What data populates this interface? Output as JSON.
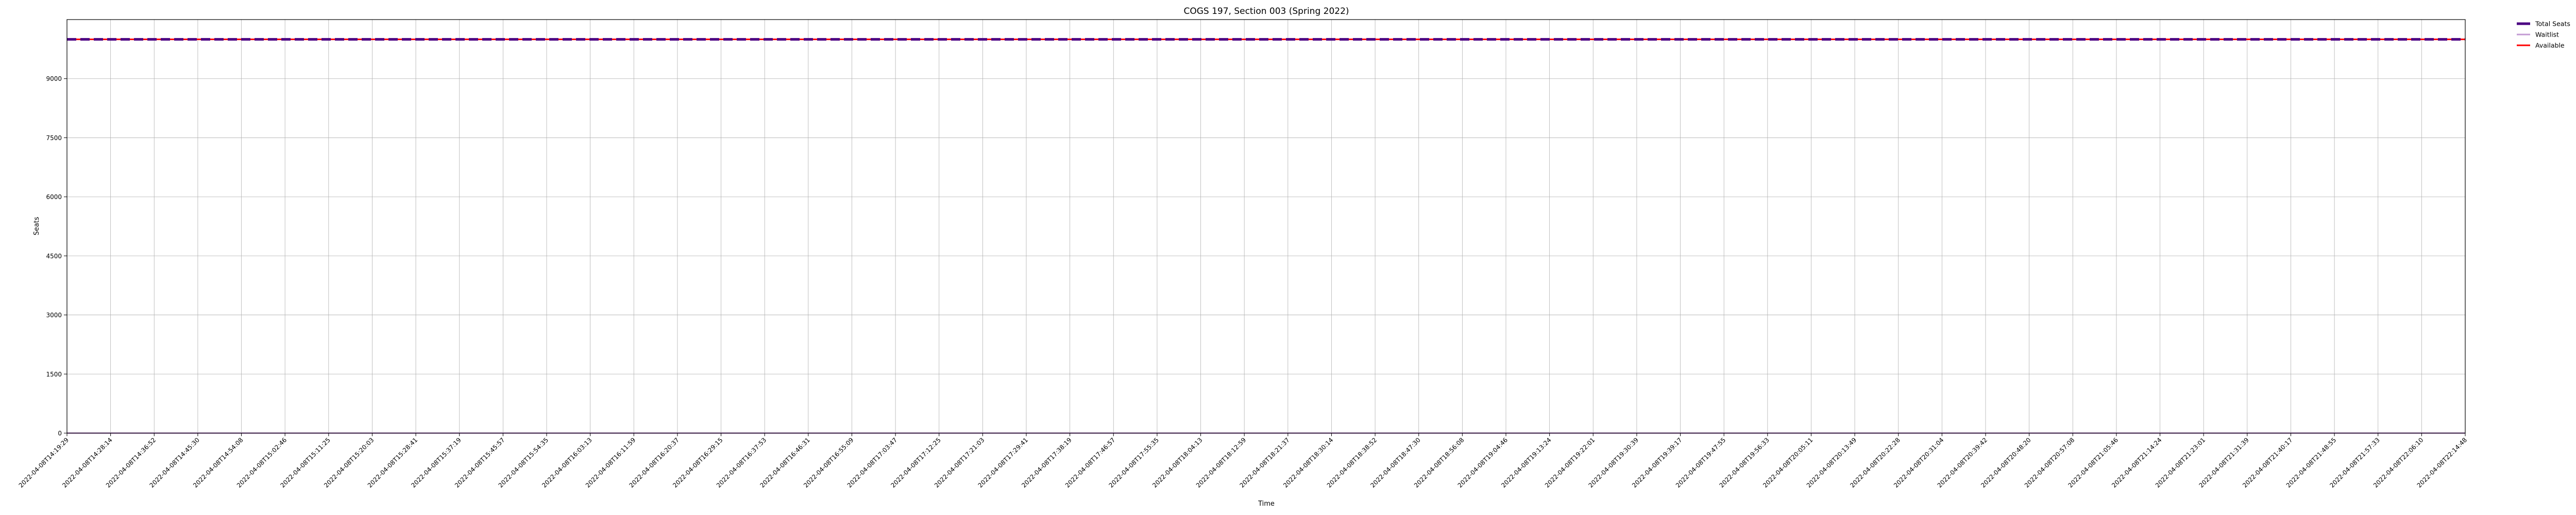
{
  "chart_data": {
    "type": "line",
    "title": "COGS 197, Section 003 (Spring 2022)",
    "xlabel": "Time",
    "ylabel": "Seats",
    "ylim": [
      0,
      10500
    ],
    "yticks": [
      0,
      1500,
      3000,
      4500,
      6000,
      7500,
      9000
    ],
    "grid": true,
    "legend_position": "outside top-right",
    "x": [
      "2022-04-08T14:19:29",
      "2022-04-08T14:28:14",
      "2022-04-08T14:36:52",
      "2022-04-08T14:45:30",
      "2022-04-08T14:54:08",
      "2022-04-08T15:02:46",
      "2022-04-08T15:11:25",
      "2022-04-08T15:20:03",
      "2022-04-08T15:28:41",
      "2022-04-08T15:37:19",
      "2022-04-08T15:45:57",
      "2022-04-08T15:54:35",
      "2022-04-08T16:03:13",
      "2022-04-08T16:11:59",
      "2022-04-08T16:20:37",
      "2022-04-08T16:29:15",
      "2022-04-08T16:37:53",
      "2022-04-08T16:46:31",
      "2022-04-08T16:55:09",
      "2022-04-08T17:03:47",
      "2022-04-08T17:12:25",
      "2022-04-08T17:21:03",
      "2022-04-08T17:29:41",
      "2022-04-08T17:38:19",
      "2022-04-08T17:46:57",
      "2022-04-08T17:55:35",
      "2022-04-08T18:04:13",
      "2022-04-08T18:12:59",
      "2022-04-08T18:21:37",
      "2022-04-08T18:30:14",
      "2022-04-08T18:38:52",
      "2022-04-08T18:47:30",
      "2022-04-08T18:56:08",
      "2022-04-08T19:04:46",
      "2022-04-08T19:13:24",
      "2022-04-08T19:22:01",
      "2022-04-08T19:30:39",
      "2022-04-08T19:39:17",
      "2022-04-08T19:47:55",
      "2022-04-08T19:56:33",
      "2022-04-08T20:05:11",
      "2022-04-08T20:13:49",
      "2022-04-08T20:22:28",
      "2022-04-08T20:31:04",
      "2022-04-08T20:39:42",
      "2022-04-08T20:48:20",
      "2022-04-08T20:57:08",
      "2022-04-08T21:05:46",
      "2022-04-08T21:14:24",
      "2022-04-08T21:23:01",
      "2022-04-08T21:31:39",
      "2022-04-08T21:40:17",
      "2022-04-08T21:48:55",
      "2022-04-08T21:57:33",
      "2022-04-08T22:06:10",
      "2022-04-08T22:14:48"
    ],
    "series": [
      {
        "name": "Total Seats",
        "color": "#4b0082",
        "style": "dashed",
        "value": 9999
      },
      {
        "name": "Waitlist",
        "color": "#c39bd3",
        "style": "solid",
        "value": 0
      },
      {
        "name": "Available",
        "color": "#ff0000",
        "style": "solid",
        "value": 9999
      }
    ]
  }
}
